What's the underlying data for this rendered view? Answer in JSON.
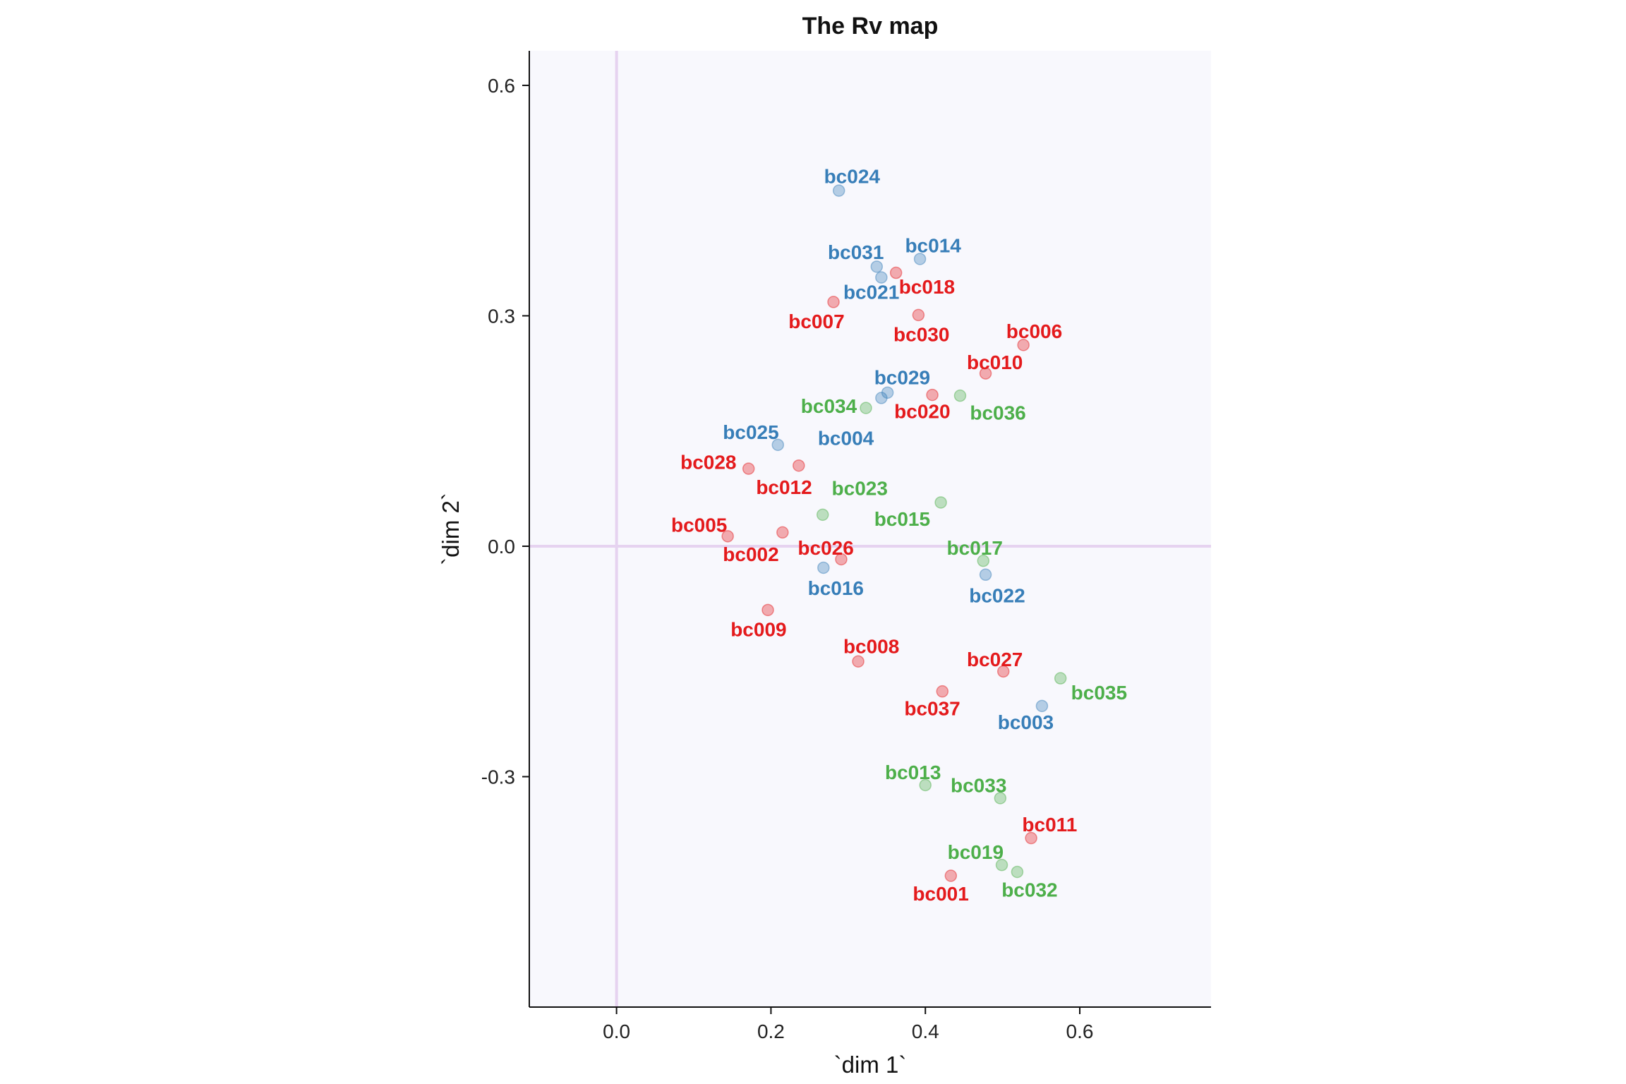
{
  "chart_data": {
    "type": "scatter",
    "title": "The Rv map",
    "xlabel": "`dim 1`",
    "ylabel": "`dim 2`",
    "xlim": [
      -0.113,
      0.77
    ],
    "ylim": [
      -0.6,
      0.645
    ],
    "x_ticks": [
      0.0,
      0.2,
      0.4,
      0.6
    ],
    "x_tick_labels": [
      "0.0",
      "0.2",
      "0.4",
      "0.6"
    ],
    "y_ticks": [
      -0.3,
      0.0,
      0.3,
      0.6
    ],
    "y_tick_labels": [
      "-0.3",
      "0.0",
      "0.3",
      "0.6"
    ],
    "grid": false,
    "reference_lines": {
      "x": 0,
      "y": 0,
      "color": "#e6d3f0"
    },
    "panel_background": "#f8f8fd",
    "group_colors": {
      "blue": "#377eb8",
      "red": "#e41a1c",
      "green": "#4daf4a"
    },
    "points": [
      {
        "label": "bc024",
        "x": 0.288,
        "y": 0.463,
        "group": "blue",
        "lx": 0.305,
        "ly": 0.482
      },
      {
        "label": "bc014",
        "x": 0.393,
        "y": 0.374,
        "group": "blue",
        "lx": 0.41,
        "ly": 0.392
      },
      {
        "label": "bc031",
        "x": 0.337,
        "y": 0.364,
        "group": "blue",
        "lx": 0.31,
        "ly": 0.383
      },
      {
        "label": "bc018",
        "x": 0.362,
        "y": 0.356,
        "group": "red",
        "lx": 0.402,
        "ly": 0.338
      },
      {
        "label": "bc021",
        "x": 0.343,
        "y": 0.35,
        "group": "blue",
        "lx": 0.33,
        "ly": 0.331
      },
      {
        "label": "bc007",
        "x": 0.281,
        "y": 0.318,
        "group": "red",
        "lx": 0.259,
        "ly": 0.293
      },
      {
        "label": "bc030",
        "x": 0.391,
        "y": 0.301,
        "group": "red",
        "lx": 0.395,
        "ly": 0.276
      },
      {
        "label": "bc006",
        "x": 0.527,
        "y": 0.262,
        "group": "red",
        "lx": 0.541,
        "ly": 0.28
      },
      {
        "label": "bc010",
        "x": 0.478,
        "y": 0.225,
        "group": "red",
        "lx": 0.49,
        "ly": 0.24
      },
      {
        "label": "bc029",
        "x": 0.351,
        "y": 0.2,
        "group": "blue",
        "lx": 0.37,
        "ly": 0.22
      },
      {
        "label": "bc020",
        "x": 0.409,
        "y": 0.197,
        "group": "red",
        "lx": 0.396,
        "ly": 0.176
      },
      {
        "label": "bc036",
        "x": 0.445,
        "y": 0.196,
        "group": "green",
        "lx": 0.494,
        "ly": 0.174
      },
      {
        "label": "bc004",
        "x": 0.343,
        "y": 0.193,
        "group": "blue",
        "lx": 0.297,
        "ly": 0.141
      },
      {
        "label": "bc034",
        "x": 0.323,
        "y": 0.18,
        "group": "green",
        "lx": 0.275,
        "ly": 0.183
      },
      {
        "label": "bc025",
        "x": 0.209,
        "y": 0.132,
        "group": "blue",
        "lx": 0.174,
        "ly": 0.149
      },
      {
        "label": "bc012",
        "x": 0.236,
        "y": 0.105,
        "group": "red",
        "lx": 0.217,
        "ly": 0.077
      },
      {
        "label": "bc028",
        "x": 0.171,
        "y": 0.101,
        "group": "red",
        "lx": 0.119,
        "ly": 0.11
      },
      {
        "label": "bc023",
        "x": 0.267,
        "y": 0.041,
        "group": "green",
        "lx": 0.315,
        "ly": 0.076
      },
      {
        "label": "bc015",
        "x": 0.42,
        "y": 0.057,
        "group": "green",
        "lx": 0.37,
        "ly": 0.036
      },
      {
        "label": "bc005",
        "x": 0.144,
        "y": 0.013,
        "group": "red",
        "lx": 0.107,
        "ly": 0.028
      },
      {
        "label": "bc002",
        "x": 0.215,
        "y": 0.018,
        "group": "red",
        "lx": 0.174,
        "ly": -0.01
      },
      {
        "label": "bc026",
        "x": 0.291,
        "y": -0.017,
        "group": "red",
        "lx": 0.271,
        "ly": -0.002
      },
      {
        "label": "bc017",
        "x": 0.475,
        "y": -0.019,
        "group": "green",
        "lx": 0.464,
        "ly": -0.002
      },
      {
        "label": "bc016",
        "x": 0.268,
        "y": -0.028,
        "group": "blue",
        "lx": 0.284,
        "ly": -0.054
      },
      {
        "label": "bc022",
        "x": 0.478,
        "y": -0.037,
        "group": "blue",
        "lx": 0.493,
        "ly": -0.064
      },
      {
        "label": "bc009",
        "x": 0.196,
        "y": -0.083,
        "group": "red",
        "lx": 0.184,
        "ly": -0.108
      },
      {
        "label": "bc008",
        "x": 0.313,
        "y": -0.15,
        "group": "red",
        "lx": 0.33,
        "ly": -0.13
      },
      {
        "label": "bc027",
        "x": 0.501,
        "y": -0.163,
        "group": "red",
        "lx": 0.49,
        "ly": -0.147
      },
      {
        "label": "bc035",
        "x": 0.575,
        "y": -0.172,
        "group": "green",
        "lx": 0.625,
        "ly": -0.19
      },
      {
        "label": "bc037",
        "x": 0.422,
        "y": -0.189,
        "group": "red",
        "lx": 0.409,
        "ly": -0.211
      },
      {
        "label": "bc003",
        "x": 0.551,
        "y": -0.208,
        "group": "blue",
        "lx": 0.53,
        "ly": -0.229
      },
      {
        "label": "bc013",
        "x": 0.4,
        "y": -0.311,
        "group": "green",
        "lx": 0.384,
        "ly": -0.294
      },
      {
        "label": "bc033",
        "x": 0.497,
        "y": -0.328,
        "group": "green",
        "lx": 0.469,
        "ly": -0.311
      },
      {
        "label": "bc011",
        "x": 0.537,
        "y": -0.38,
        "group": "red",
        "lx": 0.561,
        "ly": -0.362
      },
      {
        "label": "bc019",
        "x": 0.499,
        "y": -0.415,
        "group": "green",
        "lx": 0.465,
        "ly": -0.398
      },
      {
        "label": "bc032",
        "x": 0.519,
        "y": -0.424,
        "group": "green",
        "lx": 0.535,
        "ly": -0.447
      },
      {
        "label": "bc001",
        "x": 0.433,
        "y": -0.429,
        "group": "red",
        "lx": 0.42,
        "ly": -0.452
      }
    ]
  }
}
